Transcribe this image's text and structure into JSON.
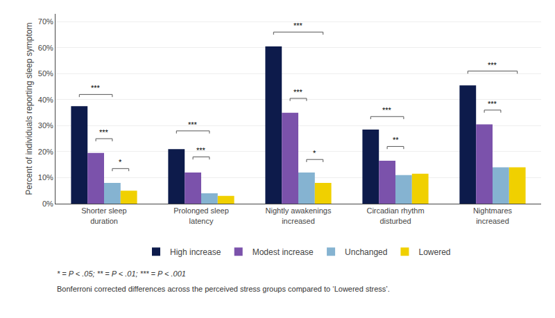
{
  "chart_data": {
    "type": "bar",
    "categories": [
      "Shorter sleep\nduration",
      "Prolonged sleep\nlatency",
      "Nightly awakenings\nincreased",
      "Circadian rhythm\ndisturbed",
      "Nightmares\nincreased"
    ],
    "series": [
      {
        "name": "High increase",
        "color": "#0d1b4b",
        "values": [
          37.5,
          21.0,
          60.5,
          28.5,
          45.5
        ]
      },
      {
        "name": "Modest increase",
        "color": "#7b52ab",
        "values": [
          19.5,
          12.0,
          35.0,
          16.5,
          30.5
        ]
      },
      {
        "name": "Unchanged",
        "color": "#85b3d1",
        "values": [
          8.0,
          4.0,
          12.0,
          11.0,
          14.0
        ]
      },
      {
        "name": "Lowered",
        "color": "#f0d000",
        "values": [
          5.0,
          3.0,
          8.0,
          11.5,
          14.0
        ]
      }
    ],
    "y_label": "Percent of individuals reporting sleep symptom",
    "ylim": [
      0,
      73
    ],
    "yticks": [
      {
        "value": 0,
        "label": "0%"
      },
      {
        "value": 10,
        "label": "10%"
      },
      {
        "value": 20,
        "label": "20%"
      },
      {
        "value": 30,
        "label": "30%"
      },
      {
        "value": 40,
        "label": "40%"
      },
      {
        "value": 50,
        "label": "50%"
      },
      {
        "value": 60,
        "label": "60%"
      },
      {
        "value": 70,
        "label": "70%"
      }
    ],
    "grid": true,
    "legend": "bottom",
    "annotations": [
      {
        "category": "Shorter sleep\nduration",
        "from": "High increase",
        "to": "Unchanged",
        "y": 42.0,
        "text": "***"
      },
      {
        "category": "Shorter sleep\nduration",
        "from": "Modest increase",
        "to": "Unchanged",
        "y": 25.0,
        "text": "***"
      },
      {
        "category": "Shorter sleep\nduration",
        "from": "Unchanged",
        "to": "Lowered",
        "y": 13.5,
        "text": "*"
      },
      {
        "category": "Prolonged sleep\nlatency",
        "from": "High increase",
        "to": "Unchanged",
        "y": 28.0,
        "text": "***"
      },
      {
        "category": "Prolonged sleep\nlatency",
        "from": "Modest increase",
        "to": "Unchanged",
        "y": 18.0,
        "text": "***"
      },
      {
        "category": "Nightly awakenings\nincreased",
        "from": "High increase",
        "to": "Lowered",
        "y": 66.0,
        "text": "***"
      },
      {
        "category": "Nightly awakenings\nincreased",
        "from": "Modest increase",
        "to": "Unchanged",
        "y": 40.5,
        "text": "***"
      },
      {
        "category": "Nightly awakenings\nincreased",
        "from": "Unchanged",
        "to": "Lowered",
        "y": 17.0,
        "text": "*"
      },
      {
        "category": "Circadian rhythm\ndisturbed",
        "from": "High increase",
        "to": "Unchanged",
        "y": 33.5,
        "text": "***"
      },
      {
        "category": "Circadian rhythm\ndisturbed",
        "from": "Modest increase",
        "to": "Unchanged",
        "y": 22.0,
        "text": "**"
      },
      {
        "category": "Nightmares\nincreased",
        "from": "High increase",
        "to": "Lowered",
        "y": 51.0,
        "text": "***"
      },
      {
        "category": "Nightmares\nincreased",
        "from": "Modest increase",
        "to": "Unchanged",
        "y": 36.0,
        "text": "***"
      }
    ],
    "footnotes": [
      "* = P < .05; ** = P < .01; *** = P < .001",
      "Bonferroni corrected differences across the perceived stress groups compared to ‘Lowered stress’."
    ]
  }
}
